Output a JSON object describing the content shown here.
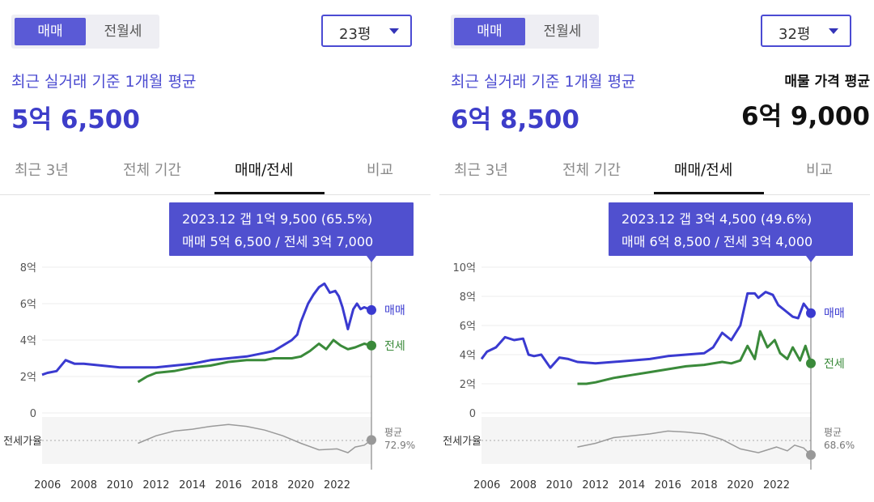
{
  "panels": [
    {
      "toggle": {
        "sale": "매매",
        "rent": "전월세"
      },
      "size": "23평",
      "price_label": "최근 실거래 기준 1개월 평균",
      "price_value": "5억 6,500",
      "tabs": [
        "최근 3년",
        "전체 기간",
        "매매/전세",
        "비교"
      ],
      "active_tab": 2,
      "tooltip": {
        "line1": "2023.12  갭 1억 9,500 (65.5%)",
        "line2": "매매 5억 6,500 / 전세 3억 7,000"
      },
      "chart_data": {
        "type": "line",
        "x_ticks": [
          "2006",
          "2008",
          "2010",
          "2012",
          "2014",
          "2016",
          "2018",
          "2020",
          "2022"
        ],
        "y_ticks": [
          "0",
          "2억",
          "4억",
          "6억",
          "8억"
        ],
        "ylim": [
          0,
          8
        ],
        "series": [
          {
            "name": "매매",
            "color": "#3a3ad0",
            "x": [
              2005.7,
              2006,
              2006.5,
              2007,
              2007.5,
              2008,
              2009,
              2010,
              2011,
              2012,
              2013,
              2014,
              2015,
              2016,
              2017,
              2018,
              2018.5,
              2019,
              2019.5,
              2019.8,
              2020,
              2020.4,
              2020.7,
              2021,
              2021.3,
              2021.6,
              2021.9,
              2022.1,
              2022.3,
              2022.6,
              2022.9,
              2023.1,
              2023.3,
              2023.5,
              2023.9
            ],
            "y": [
              2.1,
              2.2,
              2.3,
              2.9,
              2.7,
              2.7,
              2.6,
              2.5,
              2.5,
              2.5,
              2.6,
              2.7,
              2.9,
              3.0,
              3.1,
              3.3,
              3.4,
              3.7,
              4.0,
              4.3,
              5.0,
              6.0,
              6.5,
              6.9,
              7.1,
              6.6,
              6.7,
              6.4,
              5.8,
              4.6,
              5.7,
              6.0,
              5.7,
              5.8,
              5.65
            ]
          },
          {
            "name": "전세",
            "color": "#3a8a3a",
            "x": [
              2011,
              2011.5,
              2012,
              2013,
              2014,
              2015,
              2016,
              2017,
              2018,
              2018.5,
              2019,
              2019.5,
              2020,
              2020.5,
              2021,
              2021.4,
              2021.8,
              2022.2,
              2022.6,
              2023,
              2023.5,
              2023.9
            ],
            "y": [
              1.7,
              2.0,
              2.2,
              2.3,
              2.5,
              2.6,
              2.8,
              2.9,
              2.9,
              3.0,
              3.0,
              3.0,
              3.1,
              3.4,
              3.8,
              3.5,
              4.0,
              3.7,
              3.5,
              3.6,
              3.8,
              3.7
            ]
          },
          {
            "name": "전세가율",
            "color": "#9a9a9a",
            "x": [
              2011,
              2012,
              2013,
              2014,
              2015,
              2016,
              2017,
              2018,
              2019,
              2020,
              2021,
              2022,
              2022.6,
              2023,
              2023.5,
              2023.9
            ],
            "y": [
              62,
              70,
              75,
              77,
              80,
              82,
              80,
              76,
              70,
              62,
              55,
              56,
              52,
              58,
              60,
              65.5
            ]
          }
        ],
        "labels": {
          "sale": "매매",
          "rent": "전세",
          "ratio": "전세가율",
          "avg": "평균",
          "avg_value": "72.9%"
        },
        "cursor_x": 2023.9
      }
    },
    {
      "toggle": {
        "sale": "매매",
        "rent": "전월세"
      },
      "size": "32평",
      "price_label": "최근 실거래 기준 1개월 평균",
      "price_value": "6억 8,500",
      "listing_label": "매물 가격 평균",
      "listing_value": "6억 9,000",
      "tabs": [
        "최근 3년",
        "전체 기간",
        "매매/전세",
        "비교"
      ],
      "active_tab": 2,
      "tooltip": {
        "line1": "2023.12  갭 3억 4,500 (49.6%)",
        "line2": "매매 6억 8,500 / 전세 3억 4,000"
      },
      "chart_data": {
        "type": "line",
        "x_ticks": [
          "2006",
          "2008",
          "2010",
          "2012",
          "2014",
          "2016",
          "2018",
          "2020",
          "2022"
        ],
        "y_ticks": [
          "0",
          "2억",
          "4억",
          "6억",
          "8억",
          "10억"
        ],
        "ylim": [
          0,
          10
        ],
        "series": [
          {
            "name": "매매",
            "color": "#3a3ad0",
            "x": [
              2005.7,
              2006,
              2006.5,
              2007,
              2007.5,
              2008,
              2008.3,
              2008.6,
              2009,
              2009.5,
              2010,
              2010.5,
              2011,
              2012,
              2013,
              2014,
              2015,
              2016,
              2017,
              2018,
              2018.5,
              2019,
              2019.5,
              2020,
              2020.4,
              2020.8,
              2021,
              2021.4,
              2021.8,
              2022.1,
              2022.5,
              2022.9,
              2023.2,
              2023.5,
              2023.9
            ],
            "y": [
              3.7,
              4.2,
              4.5,
              5.2,
              5.0,
              5.1,
              4.0,
              3.9,
              4.0,
              3.1,
              3.8,
              3.7,
              3.5,
              3.4,
              3.5,
              3.6,
              3.7,
              3.9,
              4.0,
              4.1,
              4.5,
              5.5,
              5.0,
              6.0,
              8.2,
              8.2,
              7.9,
              8.3,
              8.1,
              7.4,
              7.0,
              6.6,
              6.5,
              7.5,
              6.85
            ]
          },
          {
            "name": "전세",
            "color": "#3a8a3a",
            "x": [
              2011,
              2011.5,
              2012,
              2013,
              2014,
              2015,
              2016,
              2017,
              2018,
              2019,
              2019.5,
              2020,
              2020.4,
              2020.8,
              2021.1,
              2021.5,
              2021.9,
              2022.2,
              2022.6,
              2022.9,
              2023.3,
              2023.6,
              2023.9
            ],
            "y": [
              2.0,
              2.0,
              2.1,
              2.4,
              2.6,
              2.8,
              3.0,
              3.2,
              3.3,
              3.5,
              3.4,
              3.6,
              4.6,
              3.7,
              5.6,
              4.5,
              5.0,
              4.1,
              3.7,
              4.5,
              3.6,
              4.6,
              3.4
            ]
          },
          {
            "name": "전세가율",
            "color": "#9a9a9a",
            "x": [
              2011,
              2012,
              2013,
              2014,
              2015,
              2016,
              2017,
              2018,
              2019,
              2020,
              2021,
              2022,
              2022.6,
              2023,
              2023.5,
              2023.9
            ],
            "y": [
              58,
              62,
              68,
              70,
              72,
              75,
              74,
              72,
              66,
              56,
              52,
              58,
              54,
              60,
              57,
              49.6
            ]
          }
        ],
        "labels": {
          "sale": "매매",
          "rent": "전세",
          "ratio": "전세가율",
          "avg": "평균",
          "avg_value": "68.6%"
        },
        "cursor_x": 2023.9
      }
    }
  ]
}
